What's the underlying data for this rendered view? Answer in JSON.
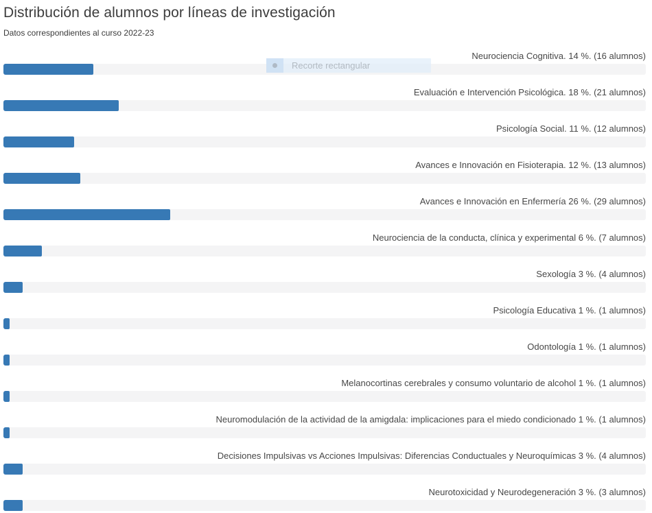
{
  "header": {
    "title": "Distribución de alumnos por líneas de investigación",
    "subtitle": "Datos correspondientes al curso 2022-23"
  },
  "chart_data": {
    "type": "bar",
    "orientation": "horizontal",
    "title": "Distribución de alumnos por líneas de investigación",
    "subtitle": "Datos correspondientes al curso 2022-23",
    "xlabel": "",
    "ylabel": "",
    "xlim": [
      0,
      100
    ],
    "grid": false,
    "legend": false,
    "bar_color": "#3779b5",
    "track_color": "#f4f4f5",
    "value_unit": "percent of alumnos",
    "categories": [
      "Neurociencia Cognitiva",
      "Evaluación e Intervención Psicológica",
      "Psicología Social",
      "Avances e Innovación en Fisioterapia",
      "Avances e Innovación en Enfermería",
      "Neurociencia de la conducta, clínica y experimental",
      "Sexología",
      "Psicología Educativa",
      "Odontología",
      "Melanocortinas cerebrales y consumo voluntario de alcohol",
      "Neuromodulación de la actividad de la amigdala: implicaciones para el miedo condicionado",
      "Decisiones Impulsivas vs Acciones Impulsivas: Diferencias Conductuales y Neuroquímicas",
      "Neurotoxicidad y Neurodegeneración"
    ],
    "values": [
      14,
      18,
      11,
      12,
      26,
      6,
      3,
      1,
      1,
      1,
      1,
      3,
      3
    ],
    "counts": [
      16,
      21,
      12,
      13,
      29,
      7,
      4,
      1,
      1,
      1,
      1,
      4,
      3
    ],
    "rows": [
      {
        "label": "Neurociencia Cognitiva. 14 %. (16 alumnos)",
        "percent": 14,
        "count": 16
      },
      {
        "label": "Evaluación e Intervención Psicológica. 18 %. (21 alumnos)",
        "percent": 18,
        "count": 21
      },
      {
        "label": "Psicología Social. 11 %. (12 alumnos)",
        "percent": 11,
        "count": 12
      },
      {
        "label": "Avances e Innovación en Fisioterapia. 12 %. (13 alumnos)",
        "percent": 12,
        "count": 13
      },
      {
        "label": "Avances e Innovación en Enfermería 26 %. (29 alumnos)",
        "percent": 26,
        "count": 29
      },
      {
        "label": "Neurociencia de la conducta, clínica y experimental 6 %. (7 alumnos)",
        "percent": 6,
        "count": 7
      },
      {
        "label": "Sexología 3 %. (4 alumnos)",
        "percent": 3,
        "count": 4
      },
      {
        "label": "Psicología Educativa 1 %. (1 alumnos)",
        "percent": 1,
        "count": 1
      },
      {
        "label": "Odontología 1 %. (1 alumnos)",
        "percent": 1,
        "count": 1
      },
      {
        "label": "Melanocortinas cerebrales y consumo voluntario de alcohol 1 %. (1 alumnos)",
        "percent": 1,
        "count": 1
      },
      {
        "label": "Neuromodulación de la actividad de la amigdala: implicaciones para el miedo condicionado 1 %. (1 alumnos)",
        "percent": 1,
        "count": 1
      },
      {
        "label": "Decisiones Impulsivas vs Acciones Impulsivas: Diferencias Conductuales y Neuroquímicas 3 %. (4 alumnos)",
        "percent": 3,
        "count": 4
      },
      {
        "label": "Neurotoxicidad y Neurodegeneración 3 %. (3 alumnos)",
        "percent": 3,
        "count": 3
      }
    ]
  },
  "overlay": {
    "label": "Recorte rectangular"
  }
}
